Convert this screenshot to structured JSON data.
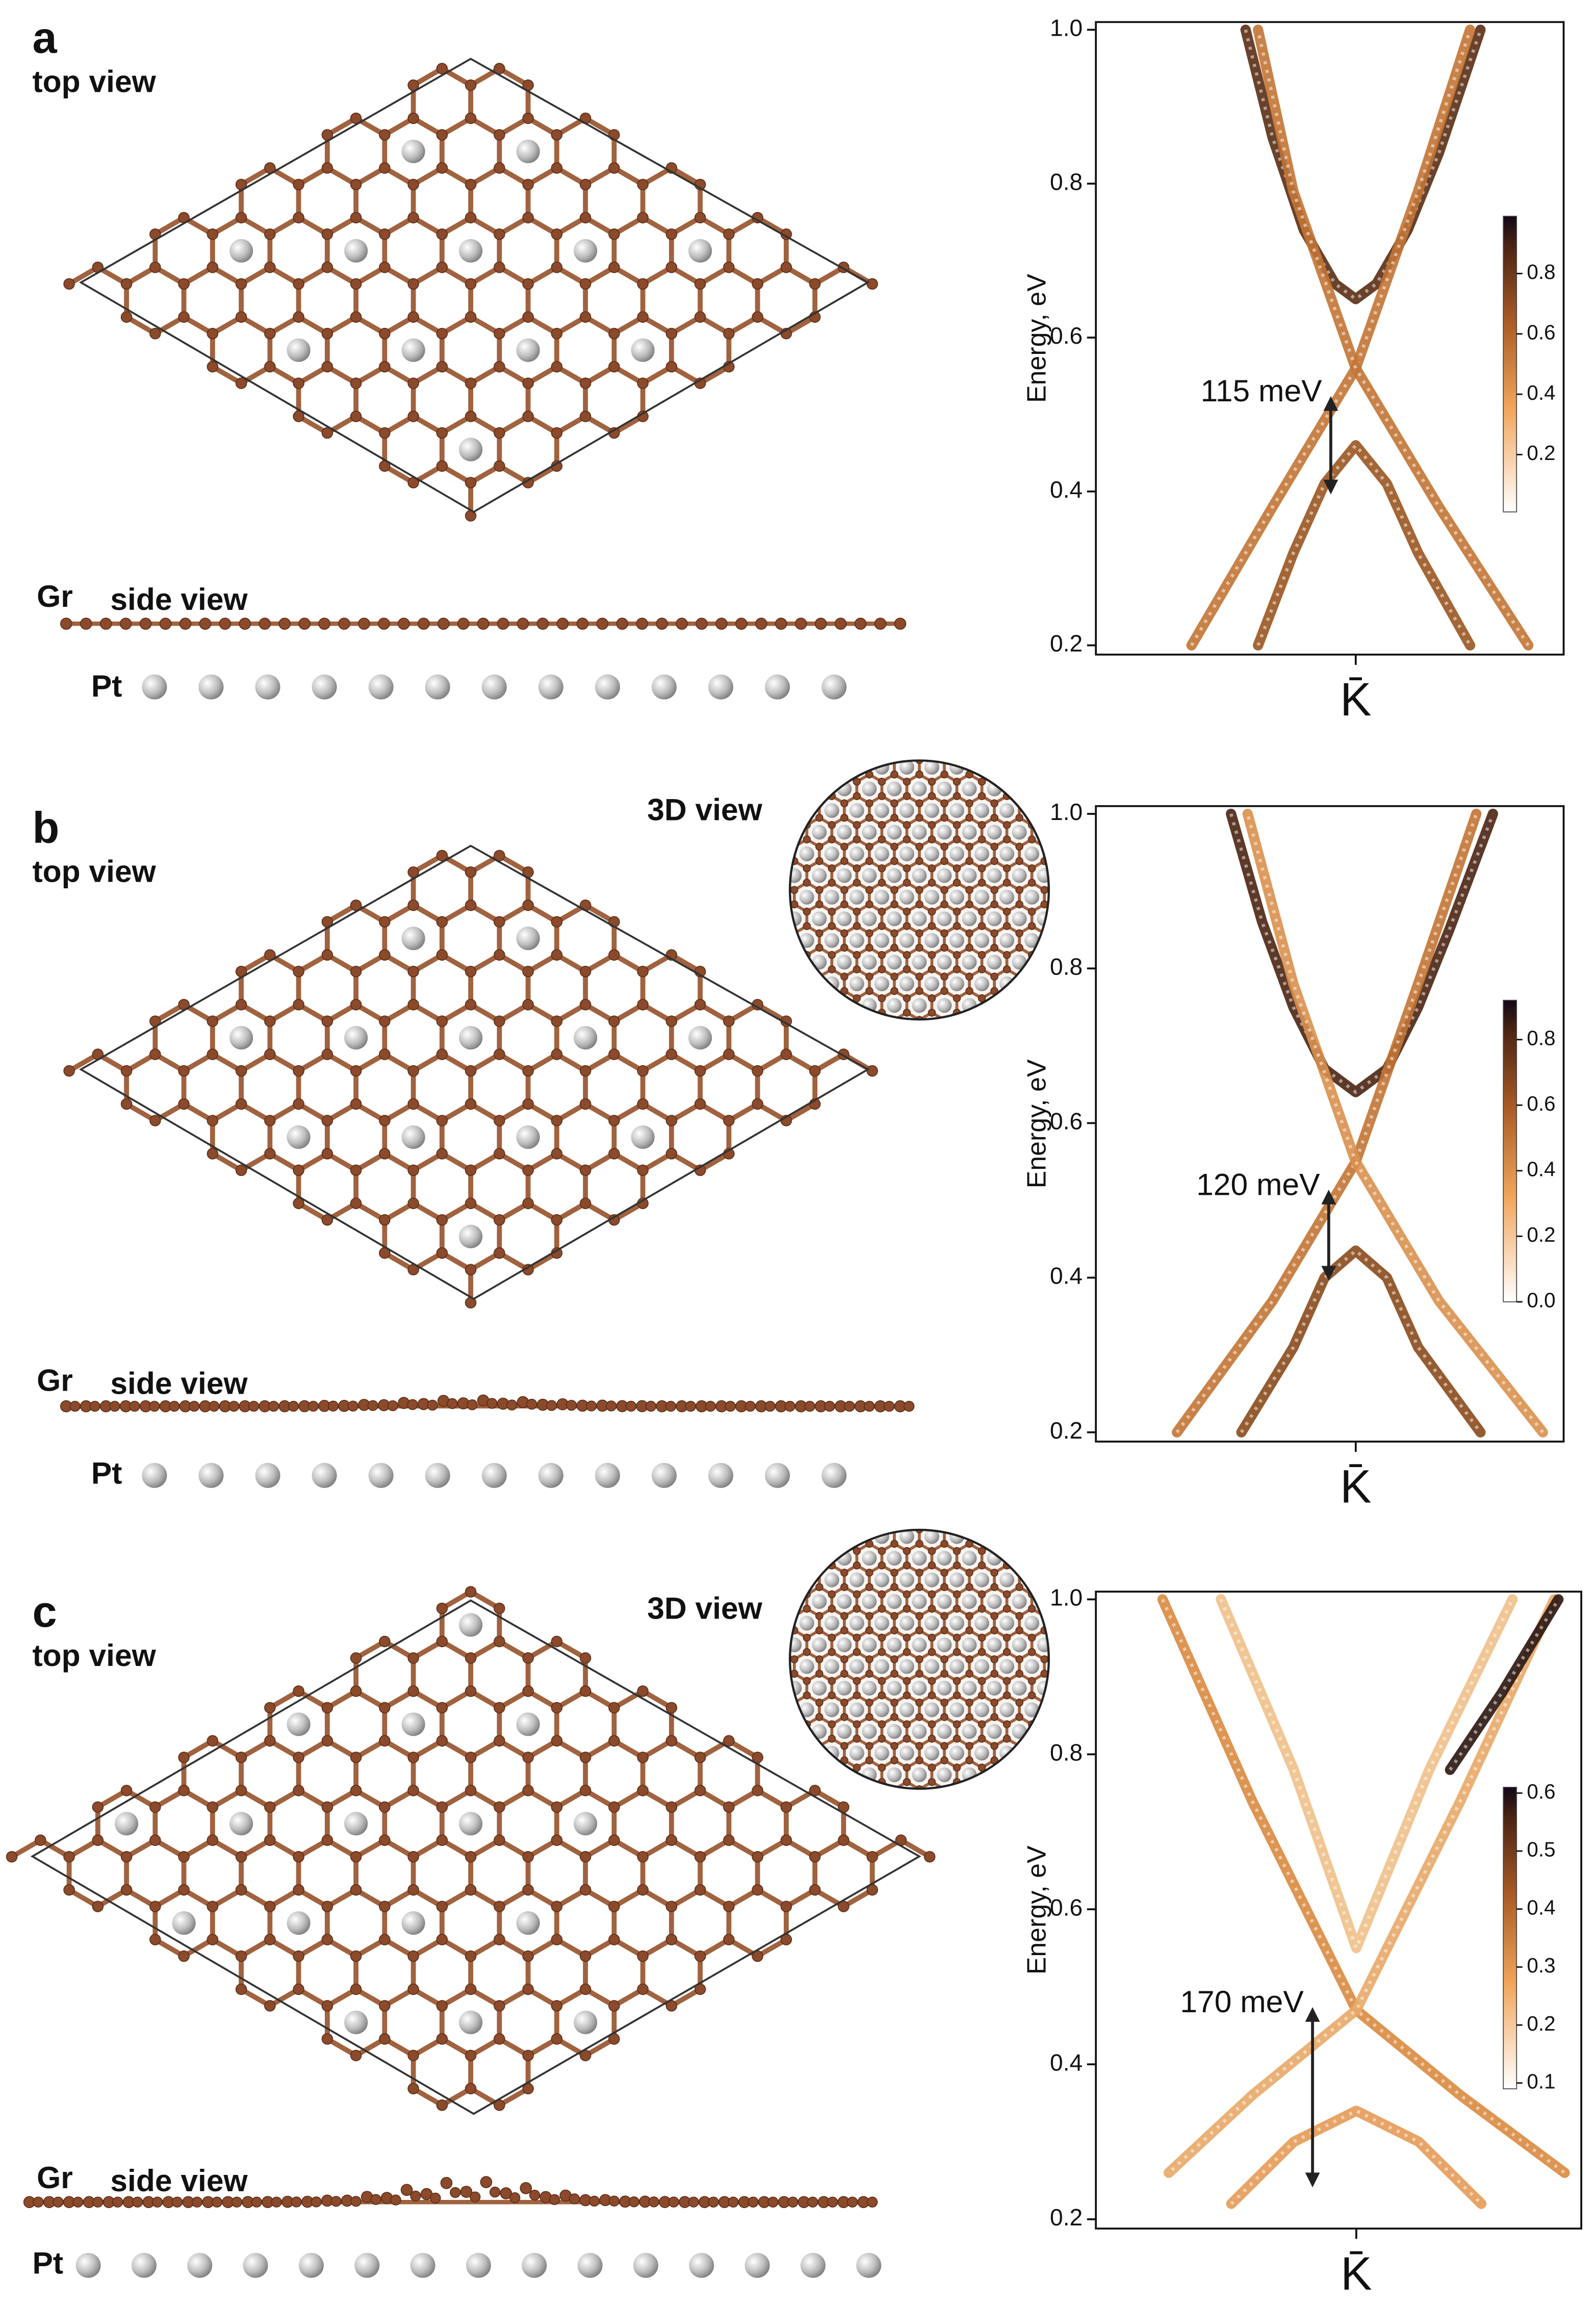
{
  "panels": [
    {
      "label": "a",
      "top_view": "top view",
      "side_view": "side view",
      "gr": "Gr",
      "pt": "Pt"
    },
    {
      "label": "b",
      "top_view": "top view",
      "side_view": "side view",
      "gr": "Gr",
      "pt": "Pt",
      "view_3d": "3D view"
    },
    {
      "label": "c",
      "top_view": "top view",
      "side_view": "side view",
      "gr": "Gr",
      "pt": "Pt",
      "view_3d": "3D view"
    }
  ],
  "chart_data": [
    {
      "type": "line",
      "ylabel": "Energy, eV",
      "xlim": [
        -1.25,
        1
      ],
      "ylim": [
        0.188,
        1.01
      ],
      "yticks": [
        0.2,
        0.4,
        0.6,
        0.8,
        {
          "value": 1,
          "label": "1.0"
        }
      ],
      "xticks": [
        {
          "value": 0,
          "label": "K̄"
        }
      ],
      "series": [
        {
          "color": "#5a2d14",
          "x": [
            -0.53,
            -0.4,
            -0.25,
            -0.1,
            0,
            0.1,
            0.25,
            0.4,
            0.6
          ],
          "values": [
            1.0,
            0.86,
            0.74,
            0.67,
            0.65,
            0.67,
            0.74,
            0.84,
            1.0
          ]
        },
        {
          "color": "#c27434",
          "x": [
            -0.79,
            -0.4,
            0,
            0.3,
            0.55
          ],
          "values": [
            0.2,
            0.38,
            0.56,
            0.79,
            1.0
          ]
        },
        {
          "color": "#c27434",
          "x": [
            0.83,
            0.4,
            0,
            -0.3,
            -0.47
          ],
          "values": [
            0.2,
            0.38,
            0.56,
            0.79,
            1.0
          ]
        },
        {
          "color": "#9a5520",
          "x": [
            -0.47,
            -0.3,
            -0.15,
            0,
            0.15,
            0.3,
            0.55
          ],
          "values": [
            0.2,
            0.32,
            0.41,
            0.46,
            0.41,
            0.32,
            0.2
          ]
        }
      ],
      "annotation": {
        "text": "115 meV",
        "x": -0.12,
        "arrow": [
          0.4,
          0.52
        ]
      },
      "colorbar": {
        "lim": [
          0.01,
          0.99
        ],
        "ticks": [
          0.2,
          0.4,
          0.6,
          0.8
        ]
      }
    },
    {
      "type": "line",
      "ylabel": "Energy, eV",
      "xlim": [
        -1.25,
        1
      ],
      "ylim": [
        0.188,
        1.01
      ],
      "yticks": [
        0.2,
        0.4,
        0.6,
        0.8,
        {
          "value": 1,
          "label": "1.0"
        }
      ],
      "xticks": [
        {
          "value": 0,
          "label": "K̄"
        }
      ],
      "series": [
        {
          "color": "#4a2412",
          "x": [
            -0.6,
            -0.45,
            -0.3,
            -0.15,
            0,
            0.15,
            0.3,
            0.45,
            0.66
          ],
          "values": [
            1.0,
            0.86,
            0.75,
            0.67,
            0.64,
            0.67,
            0.75,
            0.85,
            1.0
          ]
        },
        {
          "color": "#c27434",
          "x": [
            -0.86,
            -0.4,
            0,
            0.3,
            0.58
          ],
          "values": [
            0.2,
            0.37,
            0.55,
            0.78,
            1.0
          ]
        },
        {
          "color": "#d9904e",
          "x": [
            0.9,
            0.4,
            0,
            -0.3,
            -0.52
          ],
          "values": [
            0.2,
            0.37,
            0.55,
            0.78,
            1.0
          ]
        },
        {
          "color": "#8a4a1c",
          "x": [
            -0.55,
            -0.3,
            -0.15,
            0,
            0.15,
            0.3,
            0.6
          ],
          "values": [
            0.2,
            0.31,
            0.4,
            0.435,
            0.4,
            0.31,
            0.2
          ]
        }
      ],
      "annotation": {
        "text": "120 meV",
        "x": -0.13,
        "arrow": [
          0.4,
          0.51
        ]
      },
      "colorbar": {
        "lim": [
          0,
          0.92
        ],
        "ticks": [
          {
            "value": 0,
            "label": "0.0"
          },
          0.2,
          0.4,
          0.6,
          0.8
        ]
      }
    },
    {
      "type": "line",
      "ylabel": "Energy, eV",
      "xlim": [
        -1.25,
        1.08
      ],
      "ylim": [
        0.188,
        1.01
      ],
      "yticks": [
        0.2,
        0.4,
        0.6,
        0.8,
        {
          "value": 1,
          "label": "1.0"
        }
      ],
      "xticks": [
        {
          "value": 0,
          "label": "K̄"
        }
      ],
      "series": [
        {
          "color": "#d9893f",
          "x": [
            -0.93,
            -0.5,
            0,
            0.5,
            1.0
          ],
          "values": [
            1.0,
            0.74,
            0.47,
            0.36,
            0.26
          ]
        },
        {
          "color": "#e8a868",
          "x": [
            0.95,
            0.5,
            0,
            -0.5,
            -0.9
          ],
          "values": [
            1.0,
            0.74,
            0.47,
            0.36,
            0.26
          ]
        },
        {
          "color": "#f0c08a",
          "x": [
            -0.65,
            -0.3,
            0,
            0.35,
            0.75
          ],
          "values": [
            1.0,
            0.78,
            0.55,
            0.78,
            1.0
          ]
        },
        {
          "color": "#e59a55",
          "x": [
            -0.6,
            -0.3,
            0,
            0.3,
            0.6
          ],
          "values": [
            0.22,
            0.3,
            0.34,
            0.3,
            0.22
          ]
        },
        {
          "color": "#2a1510",
          "x": [
            0.45,
            0.7,
            0.97
          ],
          "values": [
            0.78,
            0.88,
            1.0
          ]
        }
      ],
      "annotation": {
        "text": "170 meV",
        "x": -0.21,
        "arrow": [
          0.245,
          0.47
        ]
      },
      "colorbar": {
        "lim": [
          0.09,
          0.61
        ],
        "ticks": [
          0.1,
          0.2,
          0.3,
          0.4,
          0.5,
          0.6
        ]
      }
    }
  ]
}
